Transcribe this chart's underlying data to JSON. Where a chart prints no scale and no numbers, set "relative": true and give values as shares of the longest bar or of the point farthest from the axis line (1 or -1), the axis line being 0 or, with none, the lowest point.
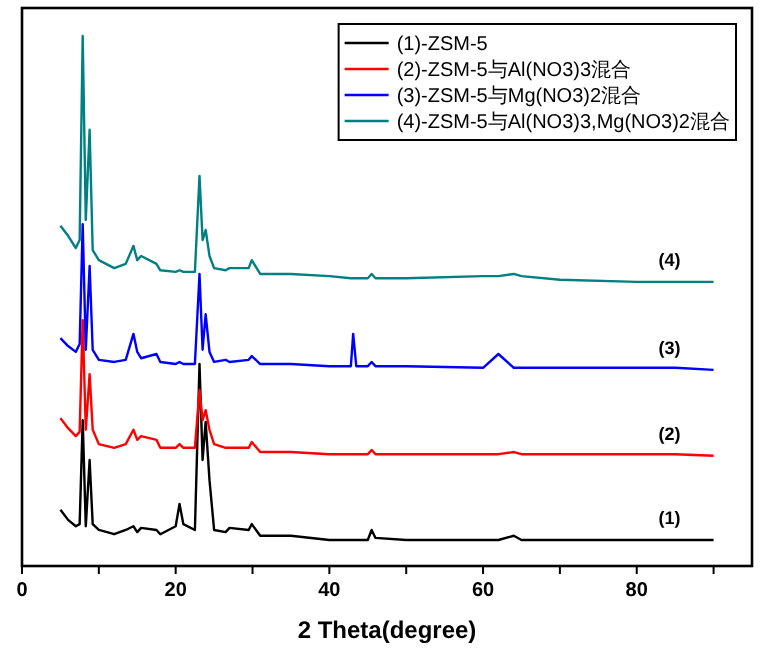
{
  "chart_data": {
    "type": "line",
    "relative": true,
    "xlabel": "2 Theta(degree)",
    "legend": "top right",
    "xlim": [
      0,
      95
    ],
    "xticks": [
      0,
      {
        "value": 10,
        "label": null
      },
      20,
      {
        "value": 30,
        "label": null
      },
      40,
      {
        "value": 50,
        "label": null
      },
      60,
      {
        "value": 70,
        "label": null
      },
      80,
      {
        "value": 90,
        "label": null
      }
    ],
    "x": [
      5,
      6,
      7,
      7.5,
      7.9,
      8.3,
      8.8,
      9.2,
      10,
      12,
      13.5,
      14.5,
      15,
      15.5,
      17.5,
      18,
      20,
      20.5,
      21,
      22.5,
      23.1,
      23.5,
      23.9,
      24.4,
      25,
      26.5,
      27,
      29.5,
      29.9,
      31,
      35,
      40,
      42.8,
      43.1,
      43.5,
      45,
      45.5,
      46,
      50,
      60,
      62,
      64,
      65,
      70,
      80,
      85,
      90
    ],
    "series": [
      {
        "name": "(1)-ZSM-5",
        "color": "#000000",
        "values": [
          0.106,
          0.087,
          0.075,
          0.079,
          0.275,
          0.075,
          0.2,
          0.079,
          0.068,
          0.06,
          0.068,
          0.075,
          0.064,
          0.072,
          0.068,
          0.06,
          0.075,
          0.117,
          0.079,
          0.068,
          0.381,
          0.2,
          0.272,
          0.162,
          0.068,
          0.064,
          0.072,
          0.068,
          0.079,
          0.057,
          0.057,
          0.049,
          0.049,
          0.049,
          0.049,
          0.049,
          0.068,
          0.053,
          0.049,
          0.049,
          0.049,
          0.057,
          0.049,
          0.049,
          0.049,
          0.049,
          0.049
        ]
      },
      {
        "name": "(2)-ZSM-5与Al(NO3)3混合",
        "color": "#ff0000",
        "values": [
          0.279,
          0.26,
          0.245,
          0.253,
          0.464,
          0.257,
          0.362,
          0.257,
          0.23,
          0.223,
          0.23,
          0.257,
          0.238,
          0.245,
          0.238,
          0.223,
          0.223,
          0.23,
          0.223,
          0.223,
          0.332,
          0.275,
          0.294,
          0.257,
          0.23,
          0.223,
          0.223,
          0.223,
          0.234,
          0.215,
          0.215,
          0.211,
          0.211,
          0.211,
          0.211,
          0.211,
          0.219,
          0.211,
          0.211,
          0.211,
          0.211,
          0.215,
          0.211,
          0.211,
          0.211,
          0.211,
          0.208
        ]
      },
      {
        "name": "(3)-ZSM-5与Mg(NO3)2混合",
        "color": "#0000ff",
        "values": [
          0.43,
          0.415,
          0.404,
          0.419,
          0.645,
          0.408,
          0.566,
          0.408,
          0.389,
          0.385,
          0.389,
          0.438,
          0.404,
          0.392,
          0.4,
          0.385,
          0.381,
          0.385,
          0.381,
          0.381,
          0.551,
          0.408,
          0.475,
          0.404,
          0.385,
          0.389,
          0.385,
          0.389,
          0.396,
          0.381,
          0.381,
          0.377,
          0.377,
          0.438,
          0.377,
          0.377,
          0.385,
          0.377,
          0.377,
          0.374,
          0.4,
          0.374,
          0.374,
          0.374,
          0.374,
          0.374,
          0.37
        ]
      },
      {
        "name": "(4)-ZSM-5与Al(NO3)3,Mg(NO3)2混合",
        "color": "#008080",
        "values": [
          0.642,
          0.623,
          0.6,
          0.615,
          1,
          0.653,
          0.823,
          0.596,
          0.577,
          0.562,
          0.57,
          0.604,
          0.577,
          0.585,
          0.57,
          0.558,
          0.555,
          0.558,
          0.555,
          0.555,
          0.736,
          0.615,
          0.634,
          0.585,
          0.562,
          0.558,
          0.562,
          0.562,
          0.577,
          0.551,
          0.551,
          0.547,
          0.543,
          0.543,
          0.543,
          0.543,
          0.551,
          0.543,
          0.543,
          0.547,
          0.547,
          0.551,
          0.547,
          0.54,
          0.536,
          0.536,
          0.536
        ]
      }
    ],
    "annotations": [
      "(1)",
      "(2)",
      "(3)",
      "(4)"
    ]
  }
}
